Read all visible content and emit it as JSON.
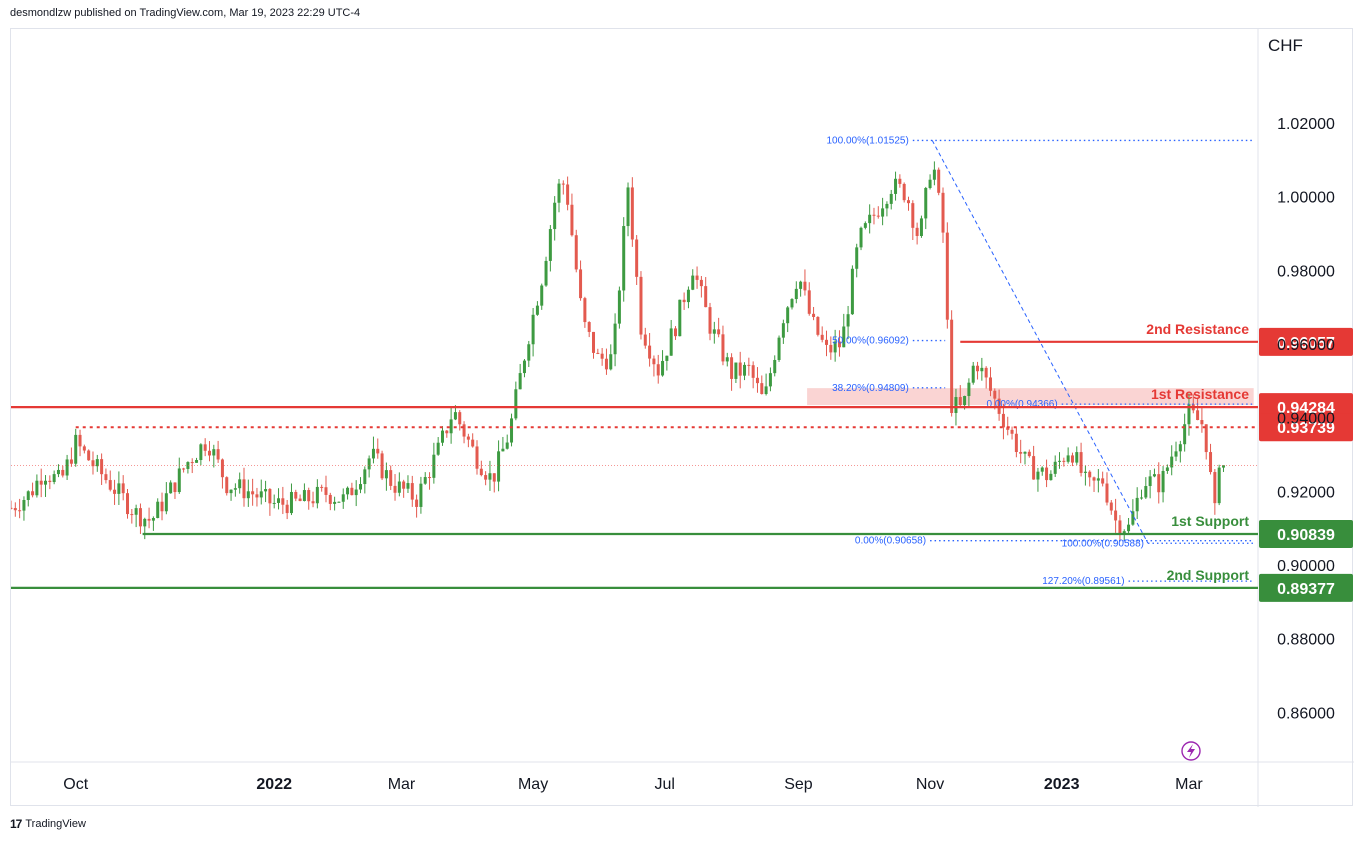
{
  "header": {
    "text": "desmondlzw published on TradingView.com, Mar 19, 2023 22:29 UTC-4"
  },
  "footer": {
    "brand": "TradingView",
    "logo": "tradingview-logo-icon"
  },
  "colors": {
    "up": "#26a69a",
    "down": "#ef5350",
    "upBody": "#3d9a41",
    "downBody": "#e35a4f",
    "resistance": "#e53935",
    "support": "#388e3c",
    "fib": "#2962ff",
    "fibText": "#2962ff"
  },
  "chart_data": {
    "type": "candlestick",
    "currency_label": "CHF",
    "y_ticks": [
      "1.02000",
      "1.00000",
      "0.98000",
      "0.96000",
      "0.94000",
      "0.92000",
      "0.90000",
      "0.88000",
      "0.86000"
    ],
    "y_tick_values": [
      1.02,
      1.0,
      0.98,
      0.96,
      0.94,
      0.92,
      0.9,
      0.88,
      0.86
    ],
    "ylim": [
      0.8465,
      1.0455
    ],
    "x_ticks": [
      {
        "label": "Oct",
        "bold": false,
        "date": "2021-10-01"
      },
      {
        "label": "2022",
        "bold": true,
        "date": "2022-01-01"
      },
      {
        "label": "Mar",
        "bold": false,
        "date": "2022-03-01"
      },
      {
        "label": "May",
        "bold": false,
        "date": "2022-05-01"
      },
      {
        "label": "Jul",
        "bold": false,
        "date": "2022-07-01"
      },
      {
        "label": "Sep",
        "bold": false,
        "date": "2022-09-01"
      },
      {
        "label": "Nov",
        "bold": false,
        "date": "2022-11-01"
      },
      {
        "label": "2023",
        "bold": true,
        "date": "2023-01-01"
      },
      {
        "label": "Mar",
        "bold": false,
        "date": "2023-03-01"
      }
    ],
    "price_path": [
      [
        "2021-09-01",
        0.9155
      ],
      [
        "2021-09-10",
        0.9195
      ],
      [
        "2021-09-16",
        0.9255
      ],
      [
        "2021-09-24",
        0.9225
      ],
      [
        "2021-10-01",
        0.933
      ],
      [
        "2021-10-08",
        0.928
      ],
      [
        "2021-10-20",
        0.92
      ],
      [
        "2021-10-29",
        0.914
      ],
      [
        "2021-11-05",
        0.912
      ],
      [
        "2021-11-12",
        0.9185
      ],
      [
        "2021-11-22",
        0.928
      ],
      [
        "2021-12-01",
        0.934
      ],
      [
        "2021-12-10",
        0.922
      ],
      [
        "2021-12-20",
        0.92
      ],
      [
        "2022-01-01",
        0.9165
      ],
      [
        "2022-01-12",
        0.917
      ],
      [
        "2022-01-25",
        0.9195
      ],
      [
        "2022-02-03",
        0.9175
      ],
      [
        "2022-02-15",
        0.93
      ],
      [
        "2022-02-25",
        0.922
      ],
      [
        "2022-03-08",
        0.918
      ],
      [
        "2022-03-18",
        0.931
      ],
      [
        "2022-03-25",
        0.942
      ],
      [
        "2022-04-04",
        0.93
      ],
      [
        "2022-04-12",
        0.923
      ],
      [
        "2022-04-20",
        0.936
      ],
      [
        "2022-04-28",
        0.96
      ],
      [
        "2022-05-05",
        0.978
      ],
      [
        "2022-05-12",
        1.002
      ],
      [
        "2022-05-16",
        1.004
      ],
      [
        "2022-05-24",
        0.966
      ],
      [
        "2022-05-31",
        0.956
      ],
      [
        "2022-06-07",
        0.956
      ],
      [
        "2022-06-14",
        1.003
      ],
      [
        "2022-06-20",
        0.965
      ],
      [
        "2022-06-28",
        0.953
      ],
      [
        "2022-07-06",
        0.965
      ],
      [
        "2022-07-14",
        0.981
      ],
      [
        "2022-07-22",
        0.965
      ],
      [
        "2022-08-01",
        0.952
      ],
      [
        "2022-08-09",
        0.953
      ],
      [
        "2022-08-16",
        0.944
      ],
      [
        "2022-08-24",
        0.966
      ],
      [
        "2022-09-01",
        0.979
      ],
      [
        "2022-09-07",
        0.966
      ],
      [
        "2022-09-14",
        0.958
      ],
      [
        "2022-09-21",
        0.96
      ],
      [
        "2022-09-29",
        0.988
      ],
      [
        "2022-10-06",
        0.995
      ],
      [
        "2022-10-14",
        1.003
      ],
      [
        "2022-10-21",
        1.001
      ],
      [
        "2022-10-27",
        0.988
      ],
      [
        "2022-11-02",
        1.011
      ],
      [
        "2022-11-08",
        0.986
      ],
      [
        "2022-11-10",
        0.944
      ],
      [
        "2022-11-16",
        0.942
      ],
      [
        "2022-11-22",
        0.956
      ],
      [
        "2022-11-30",
        0.946
      ],
      [
        "2022-12-08",
        0.936
      ],
      [
        "2022-12-16",
        0.927
      ],
      [
        "2022-12-26",
        0.924
      ],
      [
        "2023-01-05",
        0.932
      ],
      [
        "2023-01-13",
        0.921
      ],
      [
        "2023-01-20",
        0.923
      ],
      [
        "2023-01-26",
        0.912
      ],
      [
        "2023-02-01",
        0.91
      ],
      [
        "2023-02-08",
        0.923
      ],
      [
        "2023-02-16",
        0.922
      ],
      [
        "2023-02-23",
        0.933
      ],
      [
        "2023-03-01",
        0.941
      ],
      [
        "2023-03-08",
        0.938
      ],
      [
        "2023-03-13",
        0.914
      ],
      [
        "2023-03-15",
        0.929
      ],
      [
        "2023-03-17",
        0.927
      ]
    ],
    "levels": [
      {
        "kind": "resistance",
        "label": "2nd Resistance",
        "price": 0.96057,
        "price_label": "0.96057",
        "style": "solid",
        "from": "2022-11-15"
      },
      {
        "kind": "resistance",
        "label": "1st Resistance",
        "price": 0.94284,
        "price_label": "0.94284",
        "style": "solid",
        "from": "2021-09-01"
      },
      {
        "kind": "resistance",
        "label": "",
        "price": 0.93739,
        "price_label": "0.93739",
        "style": "dotted",
        "from": "2021-10-01"
      },
      {
        "kind": "support",
        "label": "1st Support",
        "price": 0.90839,
        "price_label": "0.90839",
        "style": "solid",
        "from": "2021-11-01"
      },
      {
        "kind": "support",
        "label": "2nd Support",
        "price": 0.89377,
        "price_label": "0.89377",
        "style": "solid",
        "from": "2021-09-01"
      }
    ],
    "fib_labels": [
      {
        "text": "100.00%(1.01525)",
        "price": 1.01525,
        "from": "2022-10-24",
        "to": "2023-03-31"
      },
      {
        "text": "50.00%(0.96092)",
        "price": 0.96092,
        "from": "2022-10-24",
        "to": "2022-11-08"
      },
      {
        "text": "38.20%(0.94809)",
        "price": 0.94809,
        "from": "2022-10-24",
        "to": "2022-11-08"
      },
      {
        "text": "0.00%(0.94366)",
        "price": 0.94366,
        "from": "2023-01-01",
        "to": "2023-03-31"
      },
      {
        "text": "0.00%(0.90658)",
        "price": 0.90658,
        "from": "2022-11-01",
        "to": "2023-03-31"
      },
      {
        "text": "100.00%(0.90588)",
        "price": 0.90588,
        "from": "2023-02-10",
        "to": "2023-03-31"
      },
      {
        "text": "127.20%(0.89561)",
        "price": 0.89561,
        "from": "2023-02-01",
        "to": "2023-03-31"
      }
    ],
    "fib_zone": {
      "from": "2022-09-05",
      "to": "2023-03-31",
      "price_top": 0.948,
      "price_bottom": 0.9434
    },
    "grid": false,
    "indicator_icon": "lightning-icon"
  }
}
